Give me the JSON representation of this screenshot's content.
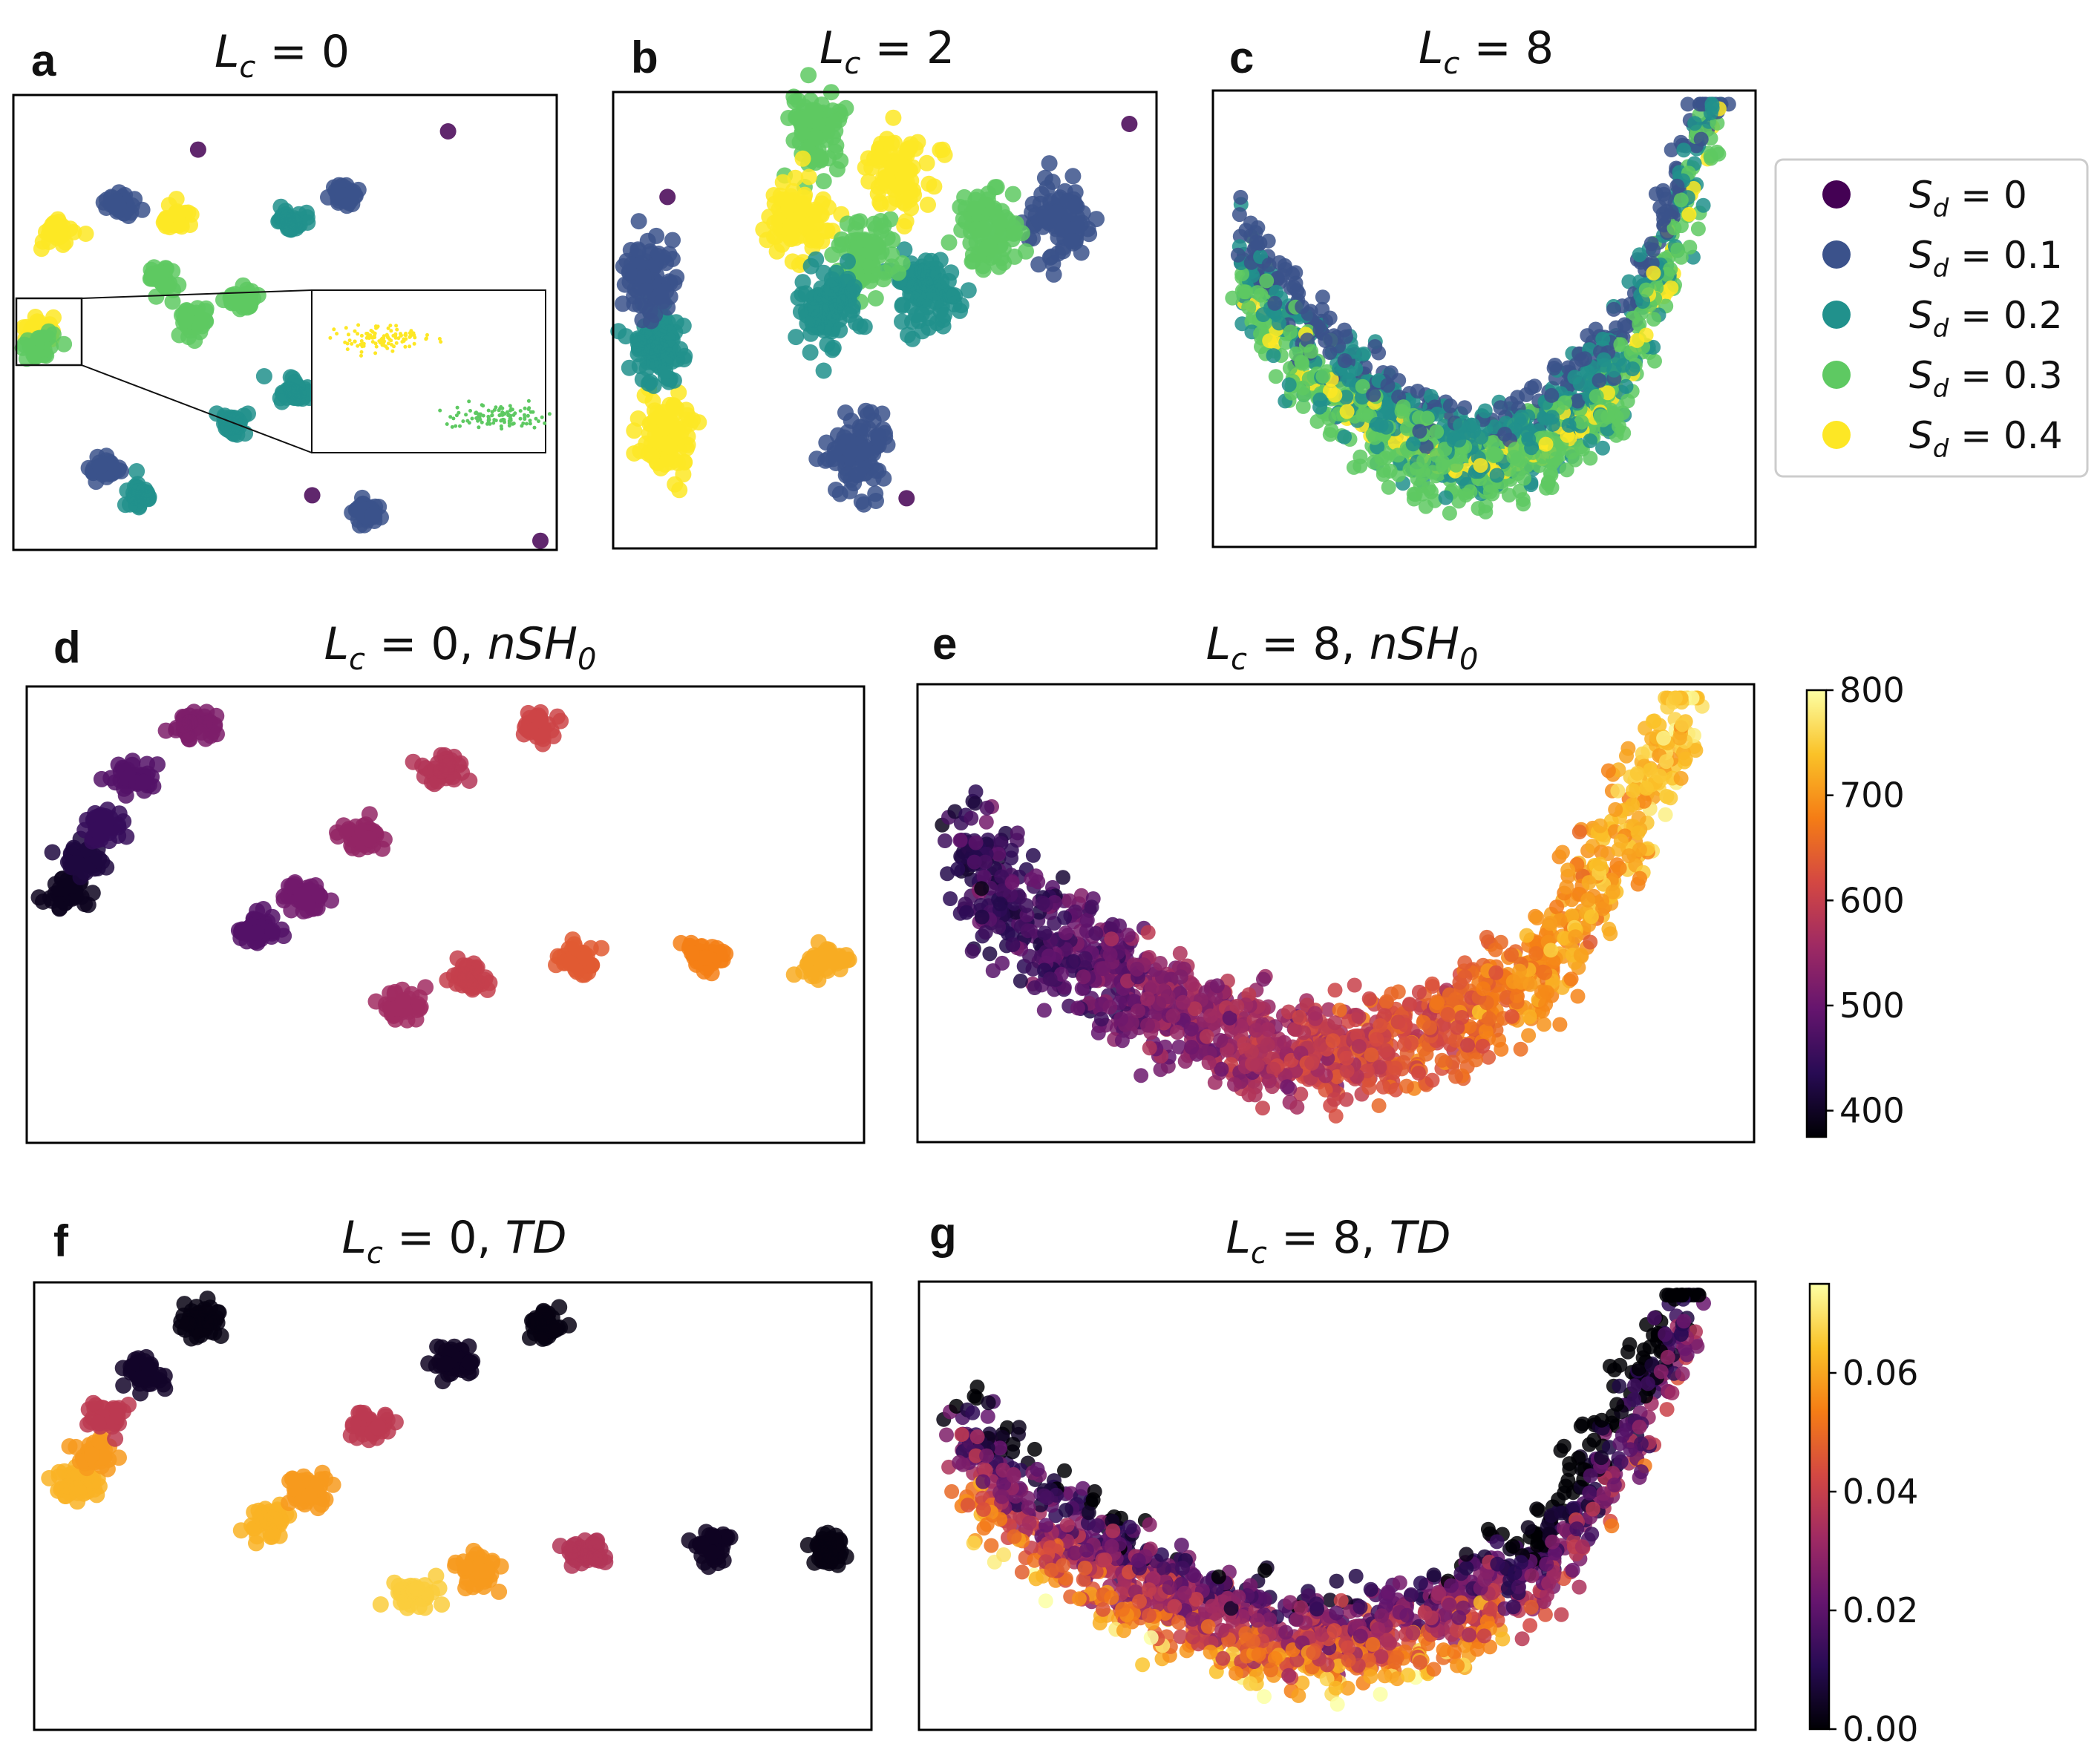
{
  "chart_data": [
    {
      "id": "a",
      "type": "scatter",
      "panel_label": "a",
      "title": {
        "var": "L",
        "sub": "c",
        "eq": " = 0"
      },
      "color_by": "S_d",
      "clusters": [
        {
          "x": 0.08,
          "y": 0.7,
          "sd": 0.4
        },
        {
          "x": 0.27,
          "y": 0.6,
          "sd": 0.3
        },
        {
          "x": 0.4,
          "y": 0.28,
          "sd": 0.2
        },
        {
          "x": 0.61,
          "y": 0.78,
          "sd": 0.1
        },
        {
          "x": 0.8,
          "y": 0.92,
          "sd": 0.0
        },
        {
          "x": 0.05,
          "y": 0.48,
          "sd": 0.4
        },
        {
          "x": 0.33,
          "y": 0.5,
          "sd": 0.3
        },
        {
          "x": 0.52,
          "y": 0.35,
          "sd": 0.2
        },
        {
          "x": 0.65,
          "y": 0.08,
          "sd": 0.1
        },
        {
          "x": 0.97,
          "y": 0.02,
          "sd": 0.0
        },
        {
          "x": 0.05,
          "y": 0.45,
          "sd": 0.3
        },
        {
          "x": 0.23,
          "y": 0.12,
          "sd": 0.2
        },
        {
          "x": 0.17,
          "y": 0.18,
          "sd": 0.1
        },
        {
          "x": 0.55,
          "y": 0.12,
          "sd": 0.0
        },
        {
          "x": 0.3,
          "y": 0.73,
          "sd": 0.4
        },
        {
          "x": 0.42,
          "y": 0.55,
          "sd": 0.3
        },
        {
          "x": 0.51,
          "y": 0.72,
          "sd": 0.2
        },
        {
          "x": 0.2,
          "y": 0.76,
          "sd": 0.1
        },
        {
          "x": 0.34,
          "y": 0.88,
          "sd": 0.0
        }
      ],
      "inset": {
        "clusters": [
          {
            "x": 0.3,
            "y": 0.7,
            "sd": 0.4
          },
          {
            "x": 0.78,
            "y": 0.22,
            "sd": 0.3
          }
        ]
      }
    },
    {
      "id": "b",
      "type": "scatter",
      "panel_label": "b",
      "title": {
        "var": "L",
        "sub": "c",
        "eq": " = 2"
      },
      "color_by": "S_d",
      "clusters": [
        {
          "x": 0.1,
          "y": 0.25,
          "sd": 0.4
        },
        {
          "x": 0.37,
          "y": 0.92,
          "sd": 0.3
        },
        {
          "x": 0.58,
          "y": 0.56,
          "sd": 0.2
        },
        {
          "x": 0.82,
          "y": 0.72,
          "sd": 0.1
        },
        {
          "x": 0.95,
          "y": 0.93,
          "sd": 0.0
        },
        {
          "x": 0.34,
          "y": 0.72,
          "sd": 0.4
        },
        {
          "x": 0.46,
          "y": 0.63,
          "sd": 0.3
        },
        {
          "x": 0.08,
          "y": 0.45,
          "sd": 0.2
        },
        {
          "x": 0.07,
          "y": 0.59,
          "sd": 0.1
        },
        {
          "x": 0.1,
          "y": 0.77,
          "sd": 0.0
        },
        {
          "x": 0.53,
          "y": 0.82,
          "sd": 0.4
        },
        {
          "x": 0.69,
          "y": 0.7,
          "sd": 0.3
        },
        {
          "x": 0.4,
          "y": 0.53,
          "sd": 0.2
        },
        {
          "x": 0.45,
          "y": 0.21,
          "sd": 0.1
        },
        {
          "x": 0.54,
          "y": 0.11,
          "sd": 0.0
        }
      ]
    },
    {
      "id": "c",
      "type": "scatter",
      "panel_label": "c",
      "title": {
        "var": "L",
        "sub": "c",
        "eq": " = 8"
      },
      "color_by": "S_d",
      "cloud": "u-shape"
    },
    {
      "id": "d",
      "type": "scatter",
      "panel_label": "d",
      "title": {
        "var": "L",
        "sub": "c",
        "eq": " = 0, ",
        "var2": "nSH",
        "sub2": "0"
      },
      "color_by": "nSH_0",
      "clusters": [
        {
          "x": 0.05,
          "y": 0.55,
          "v": 395
        },
        {
          "x": 0.07,
          "y": 0.62,
          "v": 420
        },
        {
          "x": 0.09,
          "y": 0.7,
          "v": 450
        },
        {
          "x": 0.13,
          "y": 0.8,
          "v": 480
        },
        {
          "x": 0.2,
          "y": 0.91,
          "v": 520
        },
        {
          "x": 0.28,
          "y": 0.47,
          "v": 480
        },
        {
          "x": 0.33,
          "y": 0.54,
          "v": 510
        },
        {
          "x": 0.4,
          "y": 0.68,
          "v": 545
        },
        {
          "x": 0.5,
          "y": 0.82,
          "v": 580
        },
        {
          "x": 0.61,
          "y": 0.91,
          "v": 610
        },
        {
          "x": 0.45,
          "y": 0.3,
          "v": 560
        },
        {
          "x": 0.53,
          "y": 0.36,
          "v": 600
        },
        {
          "x": 0.66,
          "y": 0.4,
          "v": 640
        },
        {
          "x": 0.81,
          "y": 0.41,
          "v": 680
        },
        {
          "x": 0.95,
          "y": 0.4,
          "v": 720
        }
      ]
    },
    {
      "id": "e",
      "type": "scatter",
      "panel_label": "e",
      "title": {
        "var": "L",
        "sub": "c",
        "eq": " = 8, ",
        "var2": "nSH",
        "sub2": "0"
      },
      "color_by": "nSH_0",
      "cloud": "u-shape",
      "colorbar": {
        "min": 375,
        "max": 800,
        "ticks": [
          400,
          500,
          600,
          700,
          800
        ]
      }
    },
    {
      "id": "f",
      "type": "scatter",
      "panel_label": "f",
      "title": {
        "var": "L",
        "sub": "c",
        "eq": " = 0, ",
        "var2": "TD"
      },
      "color_by": "TD",
      "clusters": [
        {
          "x": 0.05,
          "y": 0.55,
          "v": 0.062
        },
        {
          "x": 0.07,
          "y": 0.62,
          "v": 0.058
        },
        {
          "x": 0.09,
          "y": 0.7,
          "v": 0.038
        },
        {
          "x": 0.13,
          "y": 0.8,
          "v": 0.005
        },
        {
          "x": 0.2,
          "y": 0.91,
          "v": 0.002
        },
        {
          "x": 0.28,
          "y": 0.47,
          "v": 0.062
        },
        {
          "x": 0.33,
          "y": 0.54,
          "v": 0.058
        },
        {
          "x": 0.4,
          "y": 0.68,
          "v": 0.038
        },
        {
          "x": 0.5,
          "y": 0.82,
          "v": 0.004
        },
        {
          "x": 0.61,
          "y": 0.91,
          "v": 0.002
        },
        {
          "x": 0.45,
          "y": 0.3,
          "v": 0.066
        },
        {
          "x": 0.53,
          "y": 0.36,
          "v": 0.058
        },
        {
          "x": 0.66,
          "y": 0.4,
          "v": 0.036
        },
        {
          "x": 0.81,
          "y": 0.41,
          "v": 0.004
        },
        {
          "x": 0.95,
          "y": 0.4,
          "v": 0.002
        }
      ]
    },
    {
      "id": "g",
      "type": "scatter",
      "panel_label": "g",
      "title": {
        "var": "L",
        "sub": "c",
        "eq": " = 8, ",
        "var2": "TD"
      },
      "color_by": "TD",
      "cloud": "u-shape",
      "colorbar": {
        "min": 0.0,
        "max": 0.075,
        "ticks": [
          0.0,
          0.02,
          0.04,
          0.06
        ],
        "tick_labels": [
          "0.00",
          "0.02",
          "0.04",
          "0.06"
        ]
      }
    }
  ],
  "legend": {
    "items": [
      {
        "label_var": "S",
        "label_sub": "d",
        "label_eq": " = 0",
        "color": "#440154"
      },
      {
        "label_var": "S",
        "label_sub": "d",
        "label_eq": " = 0.1",
        "color": "#3b528b"
      },
      {
        "label_var": "S",
        "label_sub": "d",
        "label_eq": " = 0.2",
        "color": "#21918c"
      },
      {
        "label_var": "S",
        "label_sub": "d",
        "label_eq": " = 0.3",
        "color": "#5ec962"
      },
      {
        "label_var": "S",
        "label_sub": "d",
        "label_eq": " = 0.4",
        "color": "#fde725"
      }
    ]
  },
  "colormaps": {
    "viridis": [
      "#440154",
      "#3b528b",
      "#21918c",
      "#5ec962",
      "#fde725"
    ],
    "inferno": [
      "#000004",
      "#280b54",
      "#65156e",
      "#9f2a63",
      "#d44842",
      "#f57d15",
      "#fac228",
      "#fcffa4"
    ]
  }
}
